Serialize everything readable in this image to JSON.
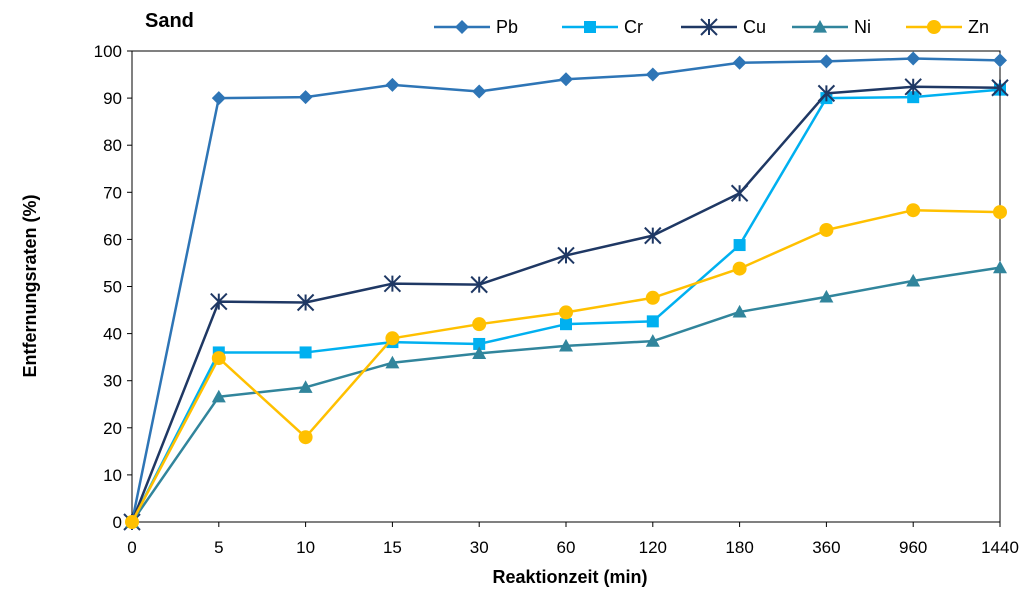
{
  "chart_data": {
    "type": "line",
    "title": "Sand",
    "xlabel": "Reaktionzeit (min)",
    "ylabel": "Entfernungsraten (%)",
    "categories": [
      "0",
      "5",
      "10",
      "15",
      "30",
      "60",
      "120",
      "180",
      "360",
      "960",
      "1440"
    ],
    "ylim": [
      0,
      100
    ],
    "yticks": [
      0,
      10,
      20,
      30,
      40,
      50,
      60,
      70,
      80,
      90,
      100
    ],
    "grid": false,
    "legend_position": "top",
    "series": [
      {
        "name": "Pb",
        "color": "#2E75B6",
        "marker": "diamond",
        "values": [
          0,
          90,
          90.2,
          92.8,
          91.4,
          94,
          95,
          97.5,
          97.8,
          98.4,
          98
        ]
      },
      {
        "name": "Cr",
        "color": "#00B0F0",
        "marker": "square",
        "values": [
          0,
          36,
          36,
          38.2,
          37.8,
          42,
          42.6,
          58.8,
          90,
          90.2,
          91.8
        ]
      },
      {
        "name": "Cu",
        "color": "#1F3864",
        "marker": "asterisk",
        "values": [
          0,
          46.8,
          46.6,
          50.6,
          50.4,
          56.6,
          60.8,
          69.8,
          91,
          92.4,
          92.2
        ]
      },
      {
        "name": "Ni",
        "color": "#31859C",
        "marker": "triangle",
        "values": [
          0,
          26.6,
          28.6,
          33.8,
          35.8,
          37.4,
          38.4,
          44.6,
          47.8,
          51.2,
          54
        ]
      },
      {
        "name": "Zn",
        "color": "#FFC000",
        "marker": "circle",
        "values": [
          0,
          34.8,
          18,
          39,
          42,
          44.5,
          47.6,
          53.8,
          62,
          66.2,
          65.8
        ]
      }
    ]
  }
}
